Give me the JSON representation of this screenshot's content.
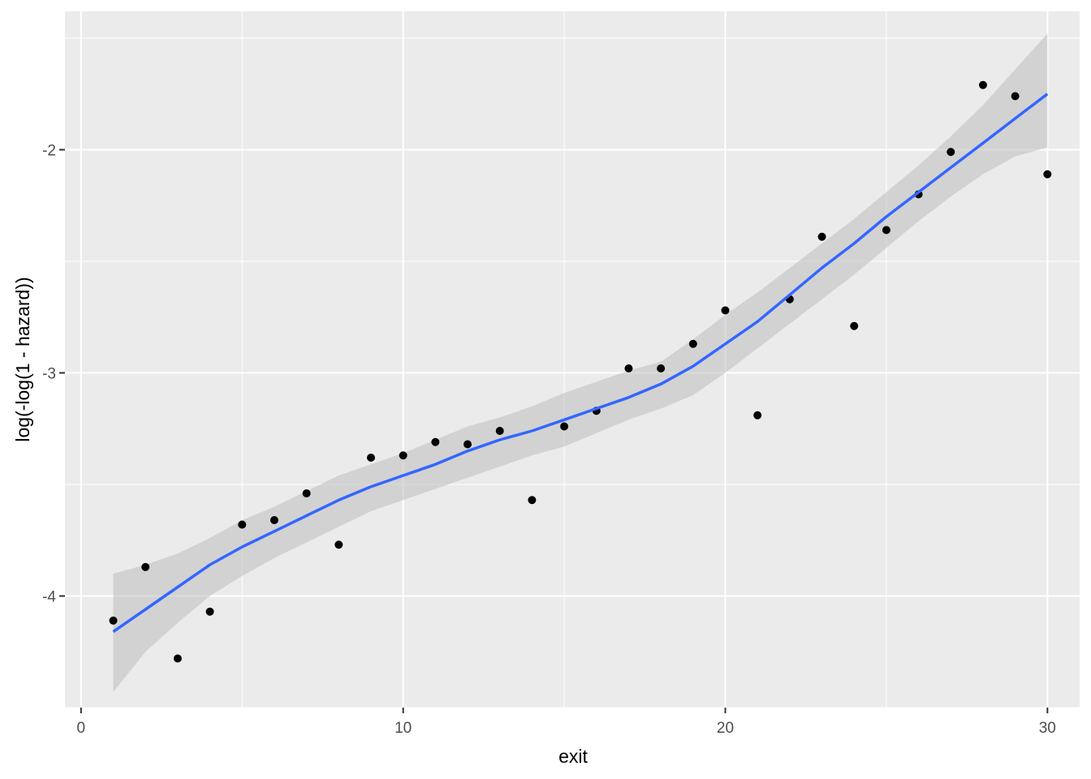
{
  "chart_data": {
    "type": "scatter",
    "title": "",
    "xlabel": "exit",
    "ylabel": "log(-log(1 - hazard))",
    "xlim": [
      -0.5,
      31.0
    ],
    "ylim": [
      -4.5,
      -1.38
    ],
    "xticks": [
      0,
      10,
      20,
      30
    ],
    "yticks": [
      -4,
      -3,
      -2
    ],
    "xtick_labels": [
      "0",
      "10",
      "20",
      "30"
    ],
    "ytick_labels": [
      "-4",
      "-3",
      "-2"
    ],
    "grid": true,
    "points": {
      "x": [
        1,
        2,
        3,
        4,
        5,
        6,
        7,
        8,
        9,
        10,
        11,
        12,
        13,
        14,
        15,
        16,
        17,
        18,
        19,
        20,
        21,
        22,
        23,
        24,
        25,
        26,
        27,
        28,
        29,
        30
      ],
      "y": [
        -4.11,
        -3.87,
        -4.28,
        -4.07,
        -3.68,
        -3.66,
        -3.54,
        -3.77,
        -3.38,
        -3.37,
        -3.31,
        -3.32,
        -3.26,
        -3.57,
        -3.24,
        -3.17,
        -2.98,
        -2.98,
        -2.87,
        -2.72,
        -3.19,
        -2.67,
        -2.39,
        -2.79,
        -2.36,
        -2.2,
        -2.01,
        -1.71,
        -1.76,
        -2.11
      ]
    },
    "smooth": {
      "x": [
        1,
        2,
        3,
        4,
        5,
        6,
        7,
        8,
        9,
        10,
        11,
        12,
        13,
        14,
        15,
        16,
        17,
        18,
        19,
        20,
        21,
        22,
        23,
        24,
        25,
        26,
        27,
        28,
        29,
        30
      ],
      "y": [
        -4.16,
        -4.06,
        -3.96,
        -3.86,
        -3.78,
        -3.71,
        -3.64,
        -3.57,
        -3.51,
        -3.46,
        -3.41,
        -3.35,
        -3.3,
        -3.26,
        -3.21,
        -3.16,
        -3.11,
        -3.05,
        -2.97,
        -2.87,
        -2.77,
        -2.65,
        -2.53,
        -2.42,
        -2.3,
        -2.19,
        -2.08,
        -1.97,
        -1.86,
        -1.75
      ],
      "lower": [
        -4.43,
        -4.25,
        -4.12,
        -4.0,
        -3.91,
        -3.83,
        -3.76,
        -3.69,
        -3.62,
        -3.57,
        -3.52,
        -3.47,
        -3.42,
        -3.37,
        -3.33,
        -3.27,
        -3.21,
        -3.16,
        -3.1,
        -3.0,
        -2.89,
        -2.78,
        -2.67,
        -2.56,
        -2.44,
        -2.32,
        -2.21,
        -2.11,
        -2.03,
        -1.99
      ],
      "upper": [
        -3.9,
        -3.86,
        -3.81,
        -3.74,
        -3.66,
        -3.6,
        -3.53,
        -3.46,
        -3.41,
        -3.36,
        -3.3,
        -3.24,
        -3.2,
        -3.15,
        -3.09,
        -3.04,
        -2.99,
        -2.95,
        -2.85,
        -2.74,
        -2.64,
        -2.53,
        -2.42,
        -2.31,
        -2.19,
        -2.07,
        -1.94,
        -1.8,
        -1.64,
        -1.48
      ]
    },
    "colors": {
      "panel": "#ebebeb",
      "grid_major": "#ffffff",
      "point": "#000000",
      "line": "#3366ff",
      "ribbon": "#bebebe"
    }
  }
}
